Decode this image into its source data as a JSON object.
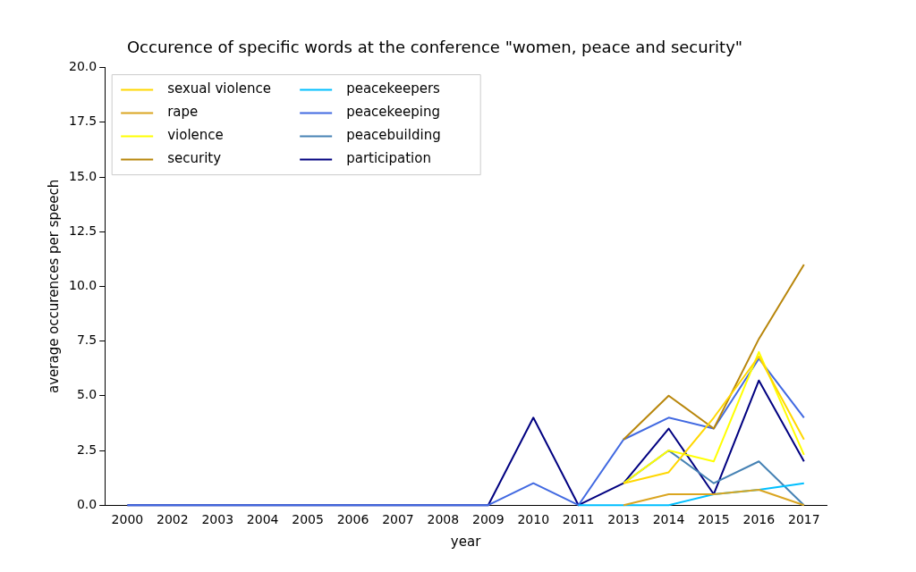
{
  "chart_data": {
    "type": "line",
    "title": "Occurence of specific words at the conference \"women, peace and security\"",
    "xlabel": "year",
    "ylabel": "average occurences per speech",
    "categories": [
      "2000",
      "2002",
      "2003",
      "2004",
      "2005",
      "2006",
      "2007",
      "2008",
      "2009",
      "2010",
      "2011",
      "2013",
      "2014",
      "2015",
      "2016",
      "2017"
    ],
    "ylim": [
      0,
      20
    ],
    "yticks": [
      {
        "value": 0,
        "label": "0.0"
      },
      {
        "value": 2.5,
        "label": "2.5"
      },
      {
        "value": 5,
        "label": "5.0"
      },
      {
        "value": 7.5,
        "label": "7.5"
      },
      {
        "value": 10,
        "label": "10.0"
      },
      {
        "value": 12.5,
        "label": "12.5"
      },
      {
        "value": 15,
        "label": "15.0"
      },
      {
        "value": 17.5,
        "label": "17.5"
      },
      {
        "value": 20,
        "label": "20.0"
      }
    ],
    "grid": false,
    "legend": "top left",
    "marker": "none",
    "line_style": "solid",
    "series": [
      {
        "name": "sexual violence",
        "color": "#ffd700",
        "values": [
          null,
          null,
          null,
          null,
          null,
          null,
          null,
          null,
          null,
          null,
          null,
          1.0,
          1.5,
          4.0,
          6.8,
          3.0
        ]
      },
      {
        "name": "rape",
        "color": "#daa520",
        "values": [
          null,
          null,
          null,
          null,
          null,
          null,
          null,
          null,
          null,
          null,
          null,
          0,
          0.5,
          0.5,
          0.7,
          0
        ]
      },
      {
        "name": "violence",
        "color": "#ffff00",
        "values": [
          null,
          null,
          null,
          null,
          null,
          null,
          null,
          null,
          null,
          null,
          null,
          1.0,
          2.5,
          2.0,
          7.0,
          2.3
        ]
      },
      {
        "name": "security",
        "color": "#b8860b",
        "values": [
          null,
          null,
          null,
          null,
          null,
          null,
          null,
          null,
          null,
          null,
          null,
          3.0,
          5.0,
          3.5,
          7.6,
          11.0
        ]
      },
      {
        "name": "peacekeepers",
        "color": "#00bfff",
        "values": [
          null,
          null,
          null,
          null,
          null,
          null,
          null,
          null,
          null,
          null,
          0,
          0,
          0,
          0.5,
          0.7,
          1.0
        ]
      },
      {
        "name": "peacekeeping",
        "color": "#4169e1",
        "values": [
          0,
          0,
          0,
          0,
          0,
          0,
          0,
          0,
          0,
          1.0,
          0,
          3.0,
          4.0,
          3.5,
          6.7,
          4.0
        ]
      },
      {
        "name": "peacebuilding",
        "color": "#4682b4",
        "values": [
          null,
          null,
          null,
          null,
          null,
          null,
          null,
          null,
          null,
          null,
          null,
          1.0,
          2.5,
          1.0,
          2.0,
          0
        ]
      },
      {
        "name": "participation",
        "color": "#000080",
        "values": [
          0,
          0,
          0,
          0,
          0,
          0,
          0,
          0,
          0,
          4.0,
          0,
          1.0,
          3.5,
          0.5,
          5.7,
          2.0
        ]
      }
    ]
  }
}
